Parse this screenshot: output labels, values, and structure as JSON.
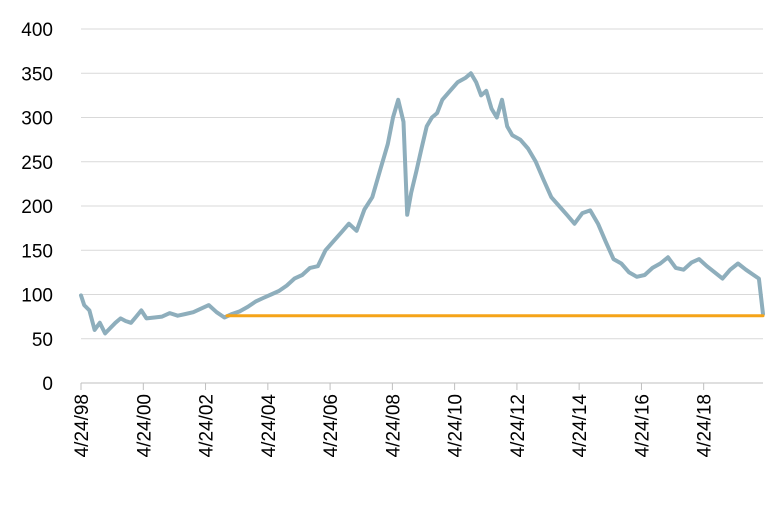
{
  "chart_data": {
    "type": "line",
    "title": "",
    "xlabel": "",
    "ylabel": "",
    "ylim": [
      0,
      400
    ],
    "xlim": [
      "1998-04-24",
      "2020-03-20"
    ],
    "grid": "horizontal",
    "legend": "none",
    "y_ticks": [
      "0",
      "50",
      "100",
      "150",
      "200",
      "250",
      "300",
      "350",
      "400"
    ],
    "x_ticks": [
      {
        "label": "4/24/98",
        "date": "1998-04-24"
      },
      {
        "label": "4/24/00",
        "date": "2000-04-24"
      },
      {
        "label": "4/24/02",
        "date": "2002-04-24"
      },
      {
        "label": "4/24/04",
        "date": "2004-04-24"
      },
      {
        "label": "4/24/06",
        "date": "2006-04-24"
      },
      {
        "label": "4/24/08",
        "date": "2008-04-24"
      },
      {
        "label": "4/24/10",
        "date": "2010-04-24"
      },
      {
        "label": "4/24/12",
        "date": "2012-04-24"
      },
      {
        "label": "4/24/14",
        "date": "2014-04-24"
      },
      {
        "label": "4/24/16",
        "date": "2016-04-24"
      },
      {
        "label": "4/24/18",
        "date": "2018-04-24"
      }
    ],
    "series": [
      {
        "color": "#8eaebc",
        "x": [
          "1998-04-24",
          "1998-06-01",
          "1998-08-01",
          "1998-10-01",
          "1998-12-01",
          "1999-02-01",
          "1999-04-01",
          "1999-06-01",
          "1999-08-01",
          "1999-10-01",
          "1999-12-01",
          "2000-02-01",
          "2000-04-01",
          "2000-06-01",
          "2000-09-01",
          "2000-12-01",
          "2001-03-01",
          "2001-06-01",
          "2001-09-01",
          "2001-12-01",
          "2002-03-01",
          "2002-06-01",
          "2002-09-01",
          "2002-12-01",
          "2003-03-01",
          "2003-06-01",
          "2003-09-01",
          "2003-12-01",
          "2004-03-01",
          "2004-06-01",
          "2004-09-01",
          "2004-12-01",
          "2005-03-01",
          "2005-06-01",
          "2005-09-01",
          "2005-12-01",
          "2006-03-01",
          "2006-06-01",
          "2006-09-01",
          "2006-12-01",
          "2007-03-01",
          "2007-06-01",
          "2007-09-01",
          "2007-12-01",
          "2008-03-01",
          "2008-05-01",
          "2008-07-01",
          "2008-09-01",
          "2008-10-15",
          "2008-12-01",
          "2009-02-01",
          "2009-04-01",
          "2009-06-01",
          "2009-08-01",
          "2009-10-01",
          "2009-12-01",
          "2010-03-01",
          "2010-06-01",
          "2010-09-01",
          "2010-11-01",
          "2011-01-01",
          "2011-03-01",
          "2011-05-01",
          "2011-07-01",
          "2011-09-01",
          "2011-11-01",
          "2012-01-01",
          "2012-03-01",
          "2012-06-01",
          "2012-09-01",
          "2012-12-01",
          "2013-03-01",
          "2013-06-01",
          "2013-09-01",
          "2013-12-01",
          "2014-03-01",
          "2014-06-01",
          "2014-09-01",
          "2014-12-01",
          "2015-03-01",
          "2015-06-01",
          "2015-09-01",
          "2015-12-01",
          "2016-03-01",
          "2016-06-01",
          "2016-09-01",
          "2016-12-01",
          "2017-03-01",
          "2017-06-01",
          "2017-09-01",
          "2017-12-01",
          "2018-03-01",
          "2018-06-01",
          "2018-09-01",
          "2018-12-01",
          "2019-03-01",
          "2019-06-01",
          "2019-09-01",
          "2019-12-01",
          "2020-02-01",
          "2020-03-20"
        ],
        "values": [
          99,
          88,
          82,
          60,
          68,
          56,
          62,
          68,
          73,
          70,
          68,
          75,
          82,
          73,
          74,
          75,
          79,
          76,
          78,
          80,
          84,
          88,
          80,
          74,
          78,
          81,
          86,
          92,
          96,
          100,
          104,
          110,
          118,
          122,
          130,
          132,
          150,
          160,
          170,
          180,
          172,
          196,
          210,
          240,
          270,
          300,
          320,
          295,
          190,
          215,
          240,
          265,
          290,
          300,
          305,
          320,
          330,
          340,
          345,
          350,
          340,
          325,
          330,
          310,
          300,
          320,
          290,
          280,
          275,
          265,
          250,
          230,
          210,
          200,
          190,
          180,
          192,
          195,
          180,
          160,
          140,
          135,
          125,
          120,
          122,
          130,
          135,
          142,
          130,
          128,
          136,
          140,
          132,
          125,
          118,
          128,
          135,
          128,
          122,
          118,
          78
        ]
      },
      {
        "color": "#f5a418",
        "x": [
          "2003-01-01",
          "2020-03-20"
        ],
        "values": [
          76,
          76
        ]
      }
    ]
  }
}
